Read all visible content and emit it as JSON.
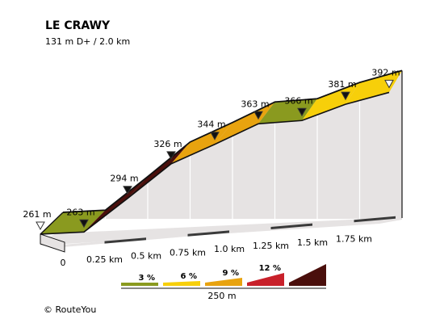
{
  "chart_data": {
    "type": "area",
    "title": "LE CRAWY",
    "subtitle": "131 m D+ / 2.0 km",
    "x": [
      0,
      0.25,
      0.5,
      0.75,
      1.0,
      1.25,
      1.5,
      1.75,
      2.0
    ],
    "altitude_labels": [
      {
        "x": 0,
        "label": "261 m",
        "marker": "open"
      },
      {
        "x": 0.25,
        "label": "263 m",
        "marker": "filled"
      },
      {
        "x": 0.5,
        "label": "294 m",
        "marker": "filled"
      },
      {
        "x": 0.75,
        "label": "326 m",
        "marker": "filled"
      },
      {
        "x": 1.0,
        "label": "344 m",
        "marker": "filled"
      },
      {
        "x": 1.25,
        "label": "363 m",
        "marker": "filled"
      },
      {
        "x": 1.5,
        "label": "366 m",
        "marker": "filled"
      },
      {
        "x": 1.75,
        "label": "381 m",
        "marker": "filled"
      },
      {
        "x": 2.0,
        "label": "392 m",
        "marker": "open"
      }
    ],
    "altitudes": [
      261,
      263,
      294,
      326,
      344,
      363,
      366,
      381,
      392
    ],
    "segment_colors": [
      "#8a9a1f",
      "#4a0f0c",
      "#4a0f0c",
      "#e8a30f",
      "#e8a30f",
      "#8a9a1f",
      "#f7cf0a",
      "#f7cf0a"
    ],
    "x_tick_labels": [
      "0",
      "0.25 km",
      "0.5 km",
      "0.75 km",
      "1.0 km",
      "1.25 km",
      "1.5 km",
      "1.75 km"
    ],
    "ylim": [
      255,
      395
    ],
    "legend": [
      {
        "label": "3 %",
        "color": "#8a9a1f"
      },
      {
        "label": "6 %",
        "color": "#f7cf0a"
      },
      {
        "label": "9 %",
        "color": "#e8a30f"
      },
      {
        "label": "12 %",
        "color": "#c8202a"
      },
      {
        "label": "",
        "color": "#4a0f0c"
      }
    ],
    "scale_label": "250 m"
  },
  "credit": "© RouteYou",
  "colors": {
    "side_face": "#e6e3e3",
    "outline": "#111111",
    "base_dark": "#3a3a3a",
    "base_light": "#e6e3e3"
  }
}
